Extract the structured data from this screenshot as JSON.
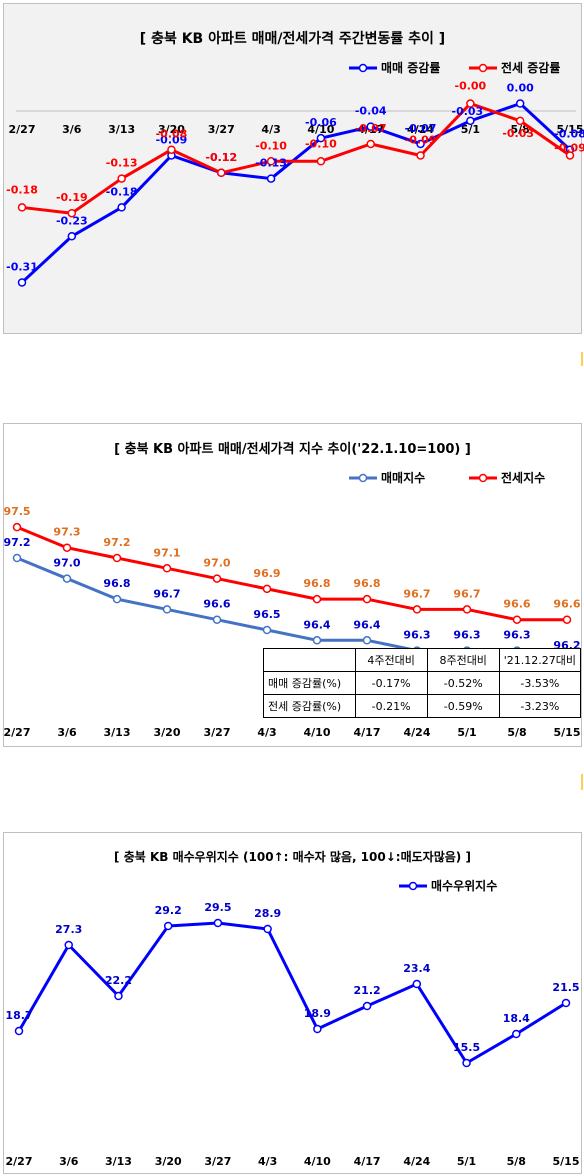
{
  "chart_data": [
    {
      "type": "line",
      "title": "[ 충북  KB 아파트 매매/전세가격 주간변동률 추이 ]",
      "categories": [
        "2/27",
        "3/6",
        "3/13",
        "3/20",
        "3/27",
        "4/3",
        "4/10",
        "4/17",
        "4/24",
        "5/1",
        "5/8",
        "5/15"
      ],
      "series": [
        {
          "name": "매매 증감률",
          "color": "#0000ff",
          "values": [
            -0.31,
            -0.23,
            -0.18,
            -0.09,
            -0.12,
            -0.13,
            -0.06,
            -0.04,
            -0.07,
            -0.03,
            0.0,
            -0.08
          ]
        },
        {
          "name": "전세 증감률",
          "color": "#ff0000",
          "values": [
            -0.18,
            -0.19,
            -0.13,
            -0.08,
            -0.12,
            -0.1,
            -0.1,
            -0.07,
            -0.09,
            -0.0,
            -0.03,
            -0.09
          ]
        }
      ],
      "labels": [
        [
          "-0.31",
          "-0.23",
          "-0.18",
          "-0.09",
          "-0.12",
          "-0.13",
          "-0.06",
          "-0.04",
          "-0.07",
          "-0.03",
          "0.00",
          "-0.08"
        ],
        [
          "-0.18",
          "-0.19",
          "-0.13",
          "-0.08",
          "-0.12",
          "-0.10",
          "-0.10",
          "-0.07",
          "-0.09",
          "-0.00",
          "-0.03",
          "-0.09"
        ]
      ],
      "ylim": [
        -0.33,
        0.02
      ],
      "legend": "top-right",
      "grid": false
    },
    {
      "type": "line",
      "title": "[ 충북  KB 아파트 매매/전세가격 지수 추이('22.1.10=100) ]",
      "categories": [
        "2/27",
        "3/6",
        "3/13",
        "3/20",
        "3/27",
        "4/3",
        "4/10",
        "4/17",
        "4/24",
        "5/1",
        "5/8",
        "5/15"
      ],
      "series": [
        {
          "name": "매매지수",
          "color": "#4472c4",
          "values": [
            97.2,
            97.0,
            96.8,
            96.7,
            96.6,
            96.5,
            96.4,
            96.4,
            96.3,
            96.3,
            96.3,
            96.2
          ]
        },
        {
          "name": "전세지수",
          "color": "#ff0000",
          "values": [
            97.5,
            97.3,
            97.2,
            97.1,
            97.0,
            96.9,
            96.8,
            96.8,
            96.7,
            96.7,
            96.6,
            96.6
          ]
        }
      ],
      "ylim": [
        96.15,
        97.55
      ],
      "legend": "top-right",
      "grid": false,
      "table": {
        "headers": [
          "",
          "4주전대비",
          "8주전대비",
          "'21.12.27대비"
        ],
        "rows": [
          [
            "매매 증감률(%)",
            "-0.17%",
            "-0.52%",
            "-3.53%"
          ],
          [
            "전세 증감률(%)",
            "-0.21%",
            "-0.59%",
            "-3.23%"
          ]
        ]
      }
    },
    {
      "type": "line",
      "title": "[ 충북  KB 매수우위지수 (100↑: 매수자 많음, 100↓:매도자많음) ]",
      "categories": [
        "2/27",
        "3/6",
        "3/13",
        "3/20",
        "3/27",
        "4/3",
        "4/10",
        "4/17",
        "4/24",
        "5/1",
        "5/8",
        "5/15"
      ],
      "series": [
        {
          "name": "매수우위지수",
          "color": "#0000ff",
          "values": [
            18.7,
            27.3,
            22.2,
            29.2,
            29.5,
            28.9,
            18.9,
            21.2,
            23.4,
            15.5,
            18.4,
            21.5
          ]
        }
      ],
      "ylim": [
        12,
        33
      ],
      "legend": "top-right",
      "grid": false
    }
  ]
}
